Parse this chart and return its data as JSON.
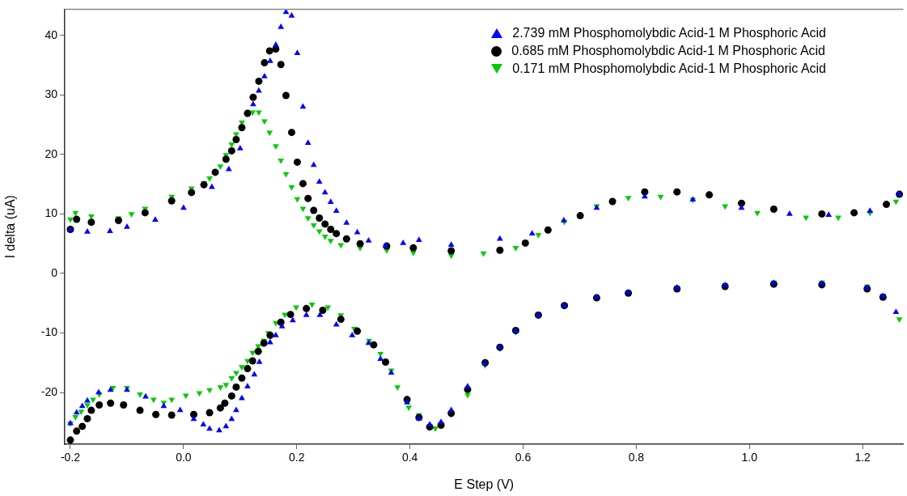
{
  "chart_data": {
    "type": "scatter",
    "xlabel": "E Step (V)",
    "ylabel": "I delta (uA)",
    "xlim": [
      -0.21,
      1.272
    ],
    "ylim": [
      -28.7,
      44.4
    ],
    "xticks": [
      {
        "value": -0.2,
        "label": "-0.2"
      },
      {
        "value": 0,
        "label": "0.0"
      },
      {
        "value": 0.2,
        "label": "0.2"
      },
      {
        "value": 0.4,
        "label": "0.4"
      },
      {
        "value": 0.6,
        "label": "0.6"
      },
      {
        "value": 0.8,
        "label": "0.8"
      },
      {
        "value": 1,
        "label": "1.0"
      },
      {
        "value": 1.2,
        "label": "1.2"
      }
    ],
    "yticks": [
      -20,
      -10,
      0,
      10,
      20,
      30,
      40
    ],
    "grid": false,
    "legend": "top right",
    "series": [
      {
        "name": "2.739 mM Phosphomolybdic Acid-1 M Phosphoric Acid",
        "color": "#0000ff",
        "marker": "triangle",
        "x": [
          -0.2,
          -0.17,
          -0.13,
          -0.1,
          -0.05,
          0,
          0.05,
          0.08,
          0.1,
          0.123,
          0.133,
          0.143,
          0.153,
          0.163,
          0.172,
          0.181,
          0.191,
          0.201,
          0.211,
          0.22,
          0.23,
          0.24,
          0.25,
          0.26,
          0.27,
          0.288,
          0.307,
          0.327,
          0.357,
          0.388,
          0.416,
          0.473,
          0.559,
          0.616,
          0.672,
          0.73,
          0.815,
          0.9,
          0.986,
          1.071,
          1.14,
          1.213,
          1.265,
          1.259,
          1.236,
          1.208,
          1.128,
          1.043,
          0.957,
          0.872,
          0.786,
          0.73,
          0.673,
          0.627,
          0.587,
          0.559,
          0.533,
          0.502,
          0.473,
          0.455,
          0.435,
          0.416,
          0.395,
          0.367,
          0.348,
          0.327,
          0.298,
          0.27,
          0.241,
          0.217,
          0.193,
          0.174,
          0.163,
          0.153,
          0.134,
          0.125,
          0.113,
          0.103,
          0.093,
          0.085,
          0.075,
          0.063,
          0.046,
          0.035,
          0.018,
          -0.006,
          -0.035,
          -0.067,
          -0.1,
          -0.129,
          -0.15,
          -0.17,
          -0.179,
          -0.189,
          -0.2
        ],
        "values": [
          7.3,
          7.0,
          7.1,
          7.8,
          9,
          11,
          14.5,
          17.5,
          21,
          28.4,
          30.7,
          33.1,
          35.7,
          38.4,
          41.4,
          43.9,
          43.3,
          37.0,
          28.0,
          21.9,
          18.2,
          15.4,
          13.6,
          12.0,
          10.5,
          8.5,
          6.9,
          5.5,
          4.6,
          5.1,
          5.6,
          4.8,
          5.8,
          6.7,
          8.9,
          11.0,
          12.9,
          12.4,
          11.0,
          10.0,
          9.8,
          10.5,
          13.3,
          -6.5,
          -3.8,
          -2.4,
          -1.7,
          -1.6,
          -2.0,
          -2.4,
          -3.2,
          -4.0,
          -5.4,
          -7.0,
          -9.7,
          -12.4,
          -15.1,
          -19.0,
          -23.0,
          -25.0,
          -25.4,
          -24.4,
          -21.7,
          -16.7,
          -14.4,
          -11.7,
          -10.4,
          -8.6,
          -7.0,
          -7.0,
          -7.9,
          -8.9,
          -10.4,
          -11.6,
          -14.9,
          -17.0,
          -19.0,
          -21.0,
          -23.0,
          -24.5,
          -25.7,
          -26.4,
          -26.1,
          -25.4,
          -24.5,
          -23.0,
          -22.3,
          -20.7,
          -19.6,
          -19.6,
          -20.0,
          -21.4,
          -22.3,
          -23.4,
          -25.2
        ]
      },
      {
        "name": "0.685 mM Phosphomolybdic Acid-1 M Phosphoric Acid",
        "color": "#000000",
        "marker": "circle",
        "x": [
          -0.2,
          -0.189,
          -0.163,
          -0.115,
          -0.068,
          -0.021,
          0.014,
          0.036,
          0.056,
          0.075,
          0.085,
          0.093,
          0.103,
          0.113,
          0.123,
          0.133,
          0.143,
          0.152,
          0.163,
          0.172,
          0.181,
          0.191,
          0.201,
          0.211,
          0.22,
          0.23,
          0.24,
          0.25,
          0.26,
          0.27,
          0.288,
          0.312,
          0.359,
          0.406,
          0.473,
          0.559,
          0.604,
          0.644,
          0.701,
          0.758,
          0.815,
          0.872,
          0.929,
          0.986,
          1.043,
          1.128,
          1.185,
          1.242,
          1.265,
          1.236,
          1.208,
          1.128,
          1.043,
          0.957,
          0.872,
          0.786,
          0.73,
          0.673,
          0.627,
          0.587,
          0.559,
          0.533,
          0.502,
          0.473,
          0.455,
          0.435,
          0.416,
          0.395,
          0.357,
          0.336,
          0.307,
          0.278,
          0.246,
          0.217,
          0.189,
          0.172,
          0.153,
          0.142,
          0.132,
          0.122,
          0.113,
          0.103,
          0.093,
          0.085,
          0.073,
          0.065,
          0.046,
          0.018,
          -0.021,
          -0.049,
          -0.077,
          -0.106,
          -0.129,
          -0.149,
          -0.163,
          -0.17,
          -0.179,
          -0.189,
          -0.2
        ],
        "values": [
          7.4,
          9.1,
          8.6,
          8.9,
          10.2,
          12.2,
          13.6,
          14.9,
          17.0,
          19.2,
          20.6,
          22.5,
          24.5,
          26.9,
          29.6,
          32.3,
          35.4,
          37.4,
          37.7,
          35.1,
          29.9,
          23.7,
          18.7,
          15.1,
          12.6,
          10.6,
          9.3,
          8.3,
          7.4,
          6.7,
          5.8,
          5.0,
          4.6,
          4.3,
          3.8,
          3.9,
          5.1,
          7.3,
          9.7,
          12.1,
          13.7,
          13.7,
          13.2,
          11.8,
          10.8,
          10.0,
          10.2,
          11.6,
          13.3,
          -4.0,
          -2.6,
          -1.9,
          -1.8,
          -2.2,
          -2.6,
          -3.3,
          -4.1,
          -5.4,
          -7.0,
          -9.6,
          -12.4,
          -15.0,
          -19.5,
          -23.5,
          -25.5,
          -25.8,
          -24.2,
          -21.2,
          -14.9,
          -12.0,
          -9.7,
          -7.7,
          -6.2,
          -5.9,
          -6.9,
          -8.2,
          -10.4,
          -11.7,
          -13.1,
          -14.7,
          -16.0,
          -17.6,
          -19.1,
          -20.6,
          -21.8,
          -22.6,
          -23.4,
          -23.7,
          -23.8,
          -23.7,
          -23.0,
          -22.1,
          -21.8,
          -22.1,
          -23.0,
          -24.4,
          -25.7,
          -26.5,
          -28.0
        ]
      },
      {
        "name": "0.171 mM Phosphomolybdic Acid-1 M Phosphoric Acid",
        "color": "#00cc00",
        "marker": "triangle_down",
        "x": [
          -0.2,
          -0.191,
          -0.163,
          -0.115,
          -0.092,
          -0.068,
          -0.021,
          0.014,
          0.036,
          0.046,
          0.065,
          0.075,
          0.085,
          0.093,
          0.103,
          0.113,
          0.122,
          0.133,
          0.143,
          0.152,
          0.163,
          0.172,
          0.181,
          0.191,
          0.201,
          0.211,
          0.22,
          0.23,
          0.24,
          0.25,
          0.26,
          0.278,
          0.312,
          0.359,
          0.406,
          0.473,
          0.53,
          0.587,
          0.627,
          0.673,
          0.73,
          0.786,
          0.843,
          0.9,
          0.957,
          1.014,
          1.1,
          1.157,
          1.213,
          1.259,
          1.265,
          1.236,
          1.208,
          1.128,
          1.043,
          0.957,
          0.872,
          0.786,
          0.73,
          0.673,
          0.627,
          0.587,
          0.559,
          0.533,
          0.502,
          0.473,
          0.445,
          0.416,
          0.398,
          0.378,
          0.367,
          0.348,
          0.328,
          0.302,
          0.278,
          0.255,
          0.227,
          0.199,
          0.179,
          0.163,
          0.15,
          0.142,
          0.132,
          0.122,
          0.113,
          0.103,
          0.093,
          0.085,
          0.075,
          0.065,
          0.046,
          0.028,
          0.004,
          -0.021,
          -0.035,
          -0.053,
          -0.077,
          -0.1,
          -0.125,
          -0.149,
          -0.16,
          -0.17,
          -0.181,
          -0.191,
          -0.2
        ],
        "values": [
          9.1,
          10.2,
          9.6,
          9.3,
          10.0,
          10.9,
          12.9,
          14.3,
          15.2,
          16.0,
          18.0,
          19.9,
          21.7,
          23.4,
          25.4,
          26.8,
          27.1,
          27.1,
          25.6,
          23.7,
          21.4,
          19.0,
          16.7,
          14.5,
          12.5,
          10.9,
          9.3,
          8.1,
          7.1,
          6.2,
          5.5,
          4.8,
          4.3,
          3.9,
          3.5,
          3.0,
          3.4,
          4.3,
          6.5,
          8.7,
          11.3,
          12.7,
          12.9,
          12.4,
          11.3,
          10.2,
          9.4,
          9.4,
          10.2,
          12.1,
          -7.7,
          -3.7,
          -2.2,
          -1.5,
          -1.5,
          -1.9,
          -2.4,
          -3.2,
          -4.0,
          -5.4,
          -7.0,
          -9.8,
          -12.6,
          -15.4,
          -20.4,
          -23.7,
          -26.0,
          -23.8,
          -22.5,
          -19.1,
          -16.3,
          -13.5,
          -11.3,
          -9.3,
          -7.0,
          -5.7,
          -5.2,
          -5.7,
          -6.9,
          -8.3,
          -10.0,
          -11.3,
          -12.2,
          -13.3,
          -14.7,
          -15.7,
          -16.7,
          -17.6,
          -18.7,
          -19.1,
          -19.6,
          -20.1,
          -20.5,
          -21.2,
          -21.7,
          -21.2,
          -20.3,
          -19.2,
          -19.2,
          -20.3,
          -21.2,
          -22.1,
          -23.2,
          -24.1,
          -25.2
        ]
      }
    ]
  }
}
